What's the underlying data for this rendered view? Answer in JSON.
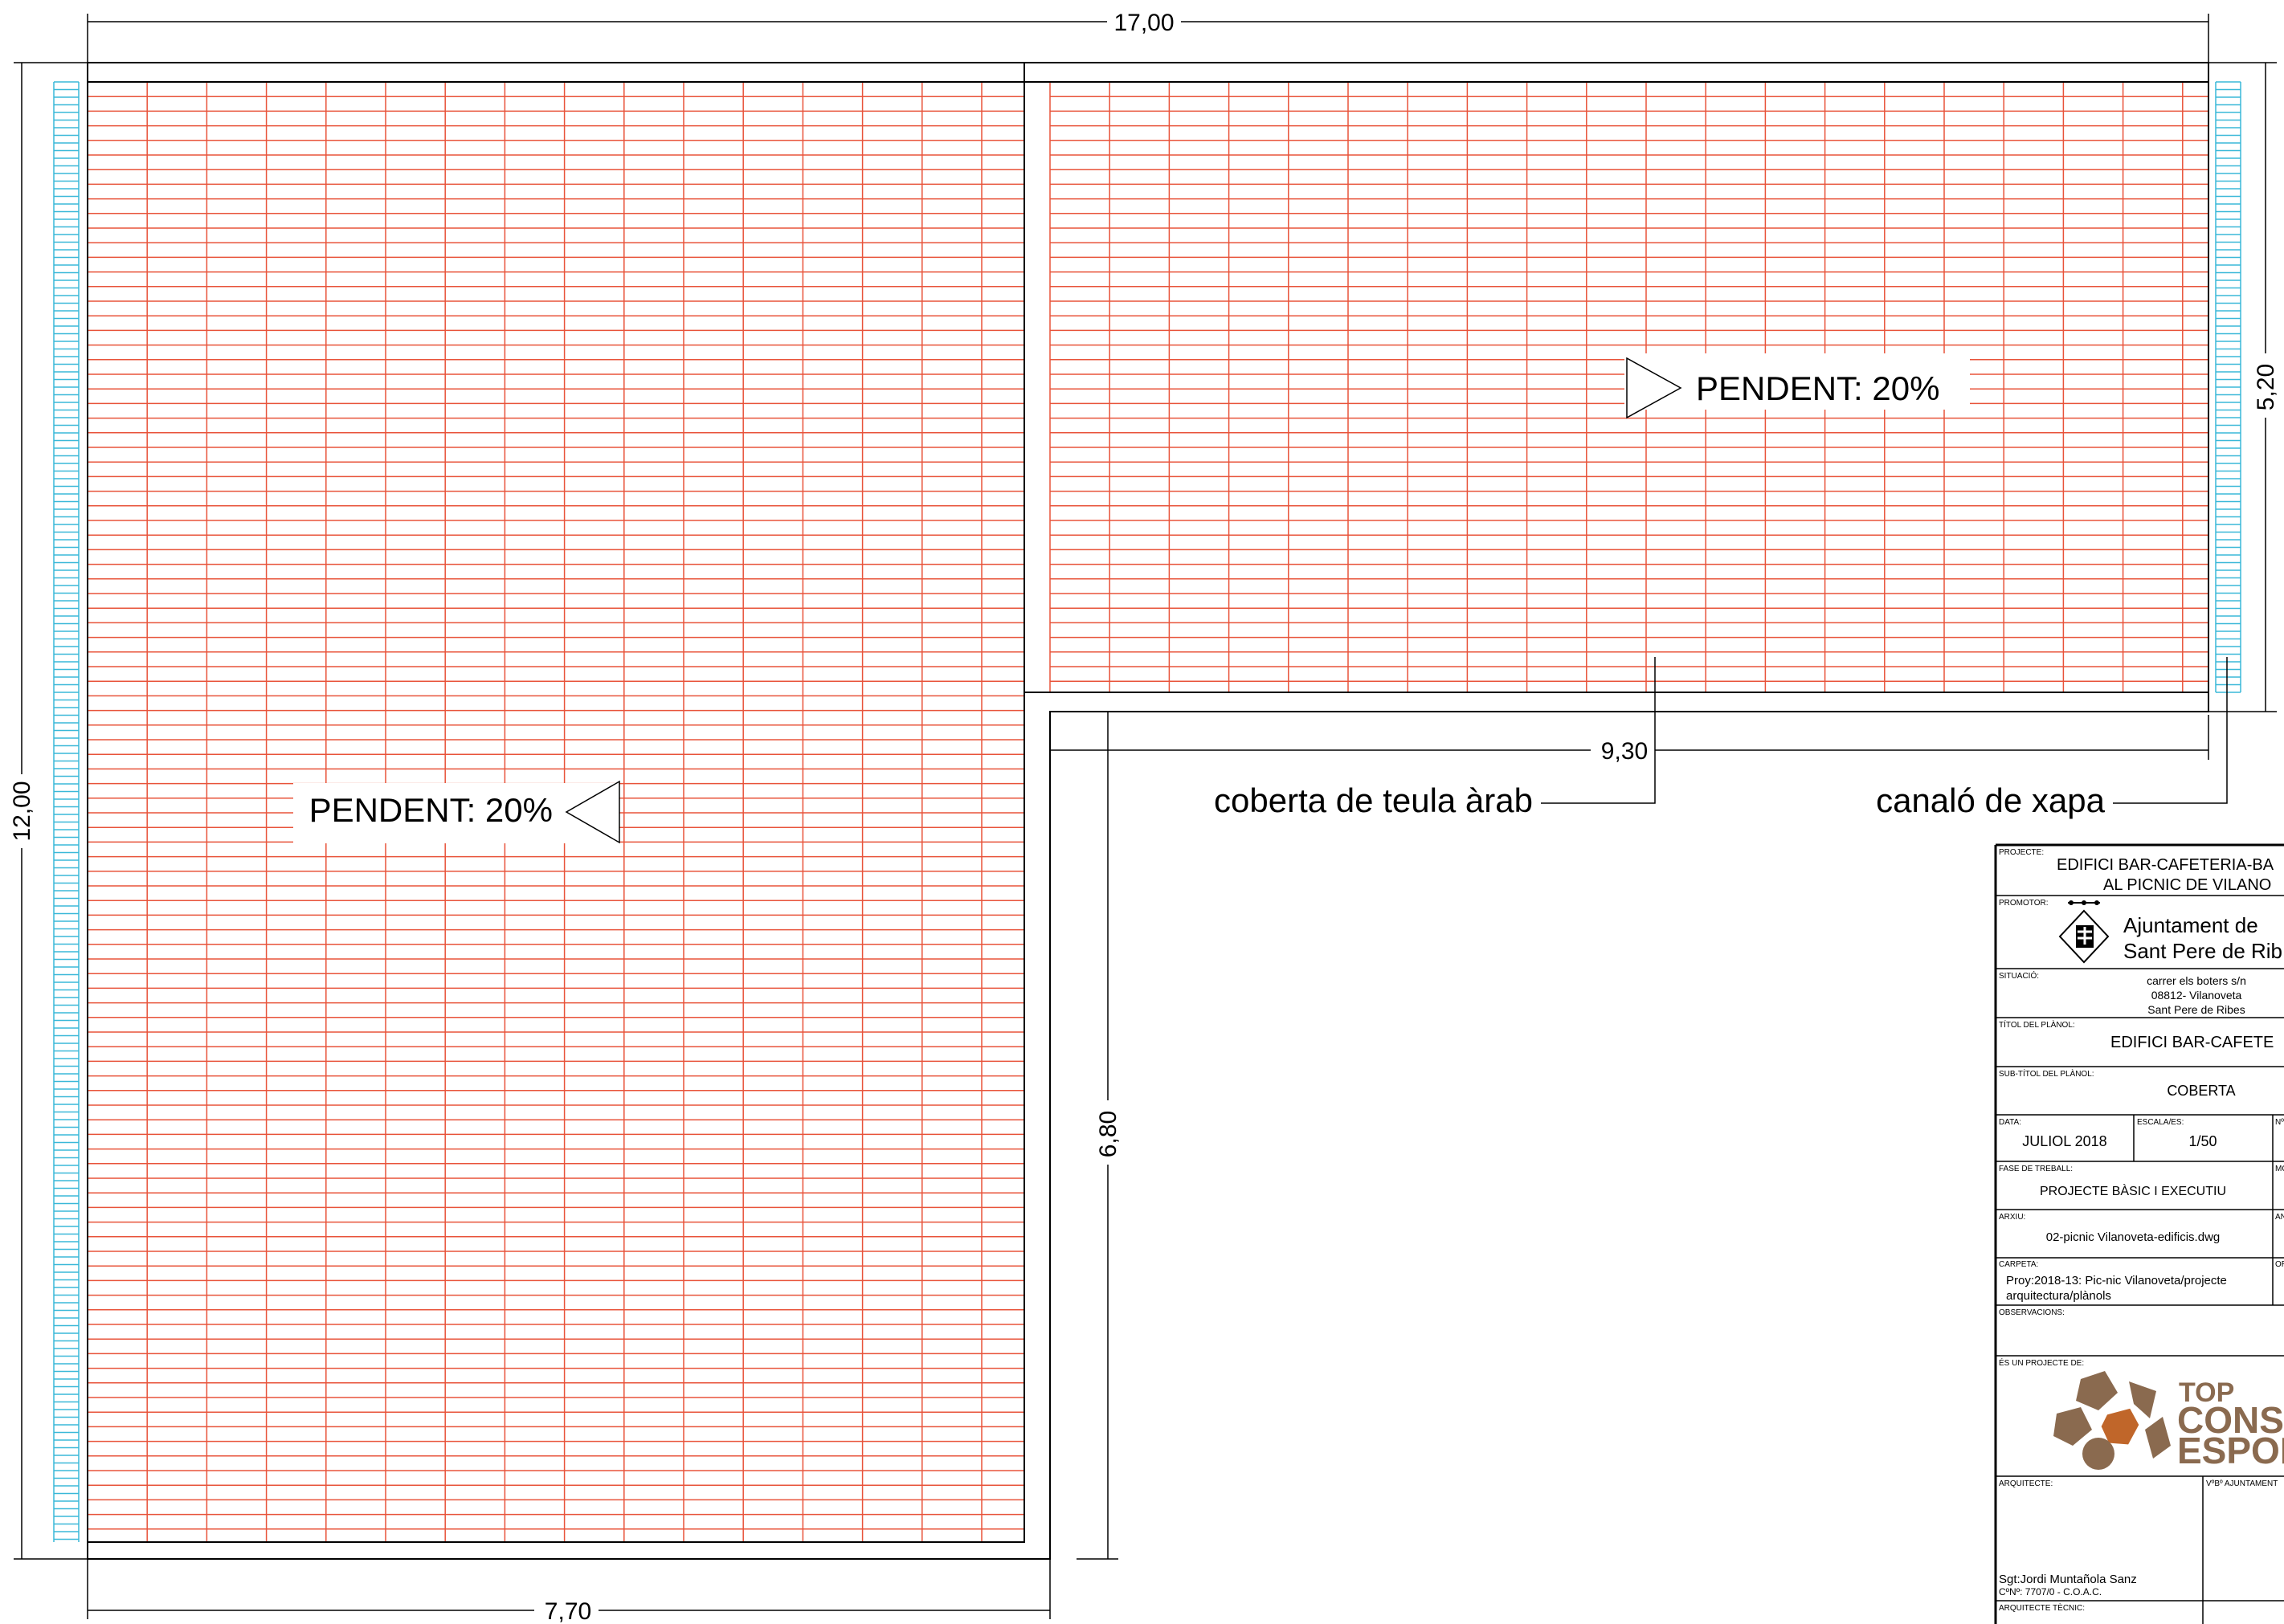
{
  "dimensions": {
    "total_width": "17,00",
    "total_height": "12,00",
    "right_block_height": "5,20",
    "right_block_width": "9,30",
    "left_lower_height": "6,80",
    "left_width": "7,70"
  },
  "annotations": {
    "slope_right": "PENDENT: 20%",
    "slope_left": "PENDENT: 20%",
    "roof_label": "coberta de teula àrab",
    "gutter_label": "canaló de xapa"
  },
  "colors": {
    "tile": "#e8533a",
    "gutter": "#3ab8d8",
    "line": "#000000",
    "logo_brown": "#8a6a4f",
    "logo_orange": "#c0662a"
  },
  "title_block": {
    "project_caption": "PROJECTE:",
    "project_line1": "EDIFICI BAR-CAFETERIA-BA",
    "project_line2": "AL PICNIC DE VILANO",
    "promoter_caption": "PROMOTOR:",
    "promoter_line1": "Ajuntament de",
    "promoter_line2": "Sant Pere de Rib",
    "situation_caption": "SITUACIÓ:",
    "situation_line1": "carrer els boters s/n",
    "situation_line2": "08812- Vilanoveta",
    "situation_line3": "Sant Pere de Ribes",
    "title_caption": "TÍTOL DEL PLÀNOL:",
    "title_value": "EDIFICI BAR-CAFETE",
    "subtitle_caption": "SUB-TÍTOL DEL PLÀNOL:",
    "subtitle_value": "COBERTA",
    "date_caption": "DATA:",
    "date_value": "JULIOL  2018",
    "scale_caption": "ESCALA/ES:",
    "scale_value": "1/50",
    "num_caption": "Nº",
    "phase_caption": "FASE DE TREBALL:",
    "phase_value": "PROJECTE BÀSIC I EXECUTIU",
    "mo_caption": "MO",
    "file_caption": "ARXIU:",
    "file_value": "02-picnic Vilanoveta-edificis.dwg",
    "an_caption": "AN",
    "folder_caption": "CARPETA:",
    "folder_line1": "Proy:2018-13: Pic-nic Vilanoveta/projecte",
    "folder_line2": "arquitectura/plànols",
    "or_caption": "OR",
    "observations_caption": "OBSERVACIONS:",
    "author_caption": "ÉS UN PROJECTE DE:",
    "logo_line1": "TOP",
    "logo_line2": "CONSUL",
    "logo_line3": "ESPORT",
    "architect_caption": "ARQUITECTE:",
    "approval_caption": "VºBº AJUNTAMENT",
    "signature_line1": "Sgt:Jordi Muntañola Sanz",
    "signature_line2": "CºNº: 7707/0 - C.O.A.C.",
    "tech_caption": "ARQUITECTE TÈCNIC:"
  }
}
